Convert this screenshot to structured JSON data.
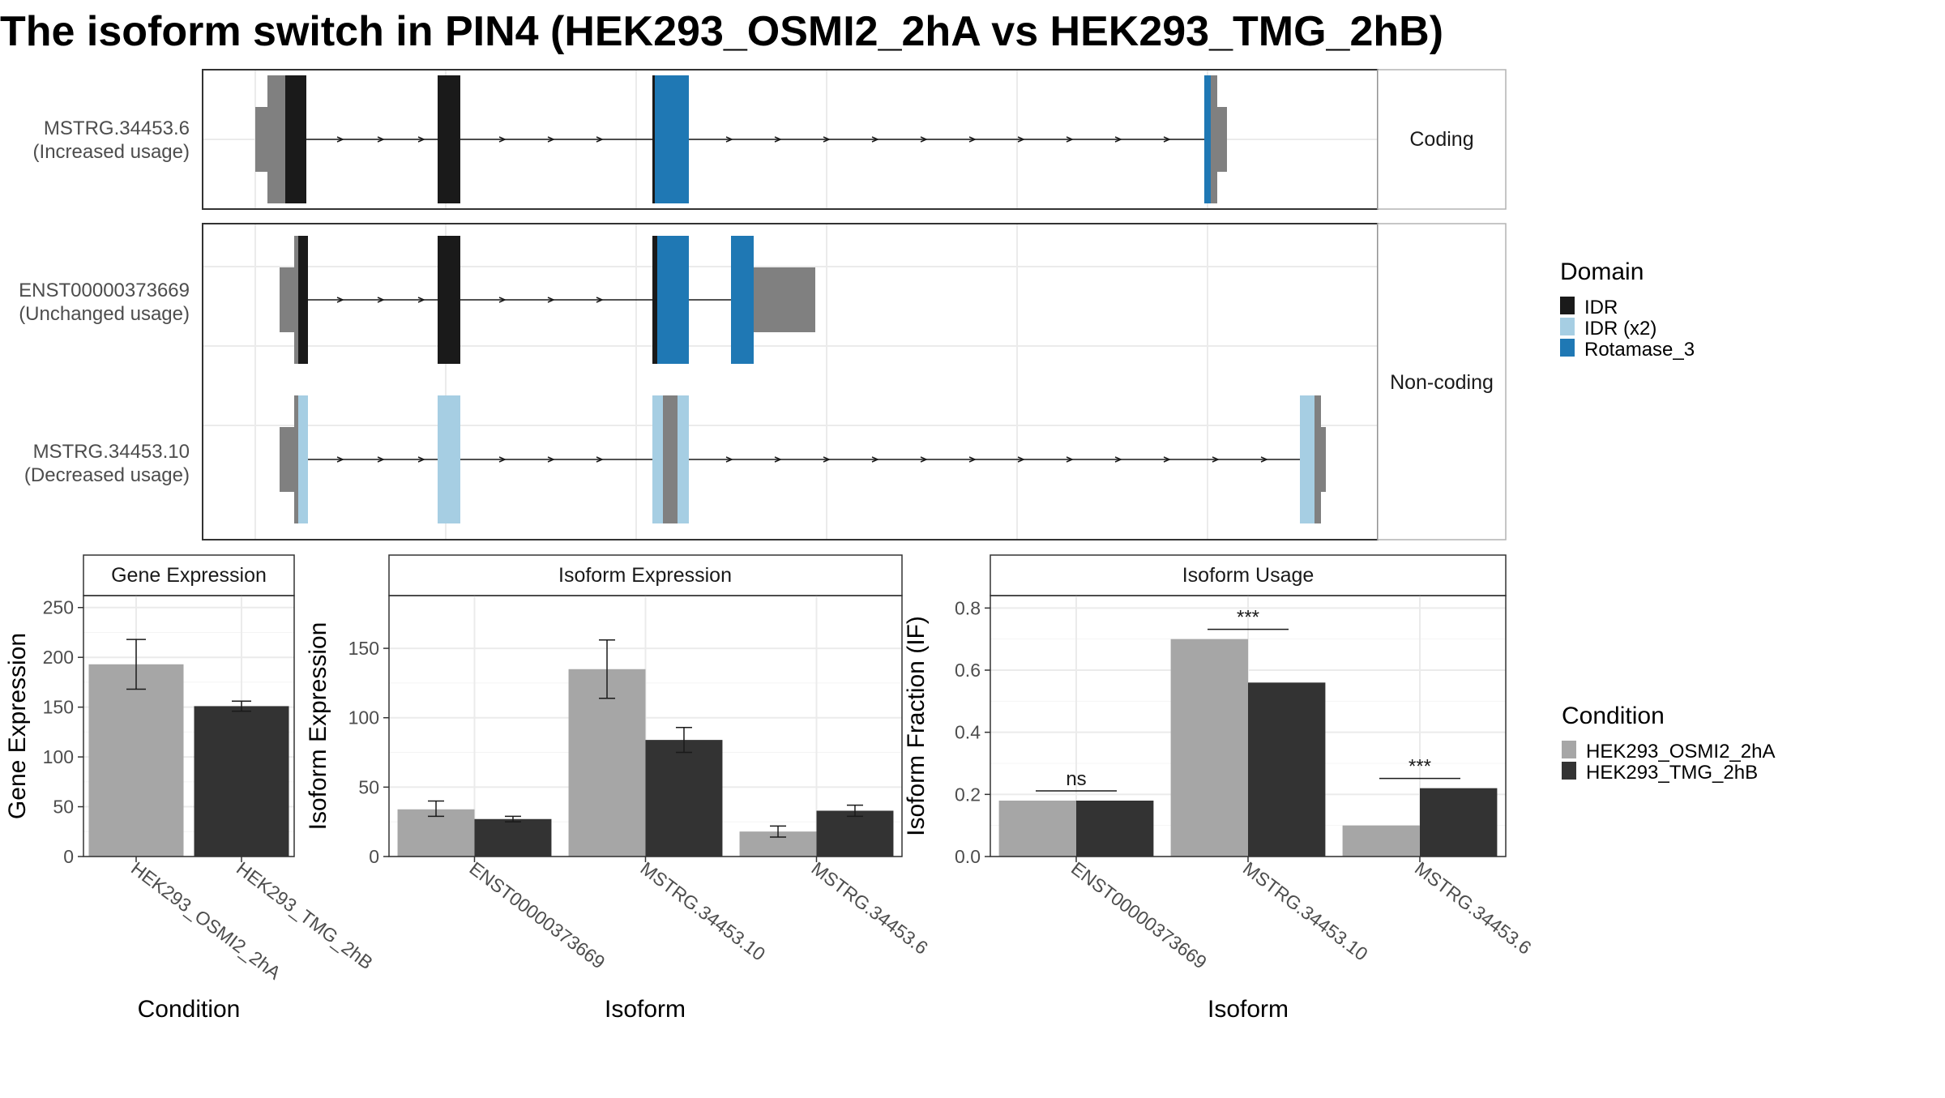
{
  "title": "The isoform switch in PIN4 (HEK293_OSMI2_2hA vs HEK293_TMG_2hB)",
  "colors": {
    "IDR": "#1a1a1a",
    "IDR (x2)": "#a6cee3",
    "Rotamase_3": "#1f78b4",
    "utr": "#808080",
    "cond1": "#a6a6a6",
    "cond2": "#333333"
  },
  "structure": {
    "facets": [
      {
        "label": "Coding",
        "rows": [
          "MSTRG.34453.6"
        ]
      },
      {
        "label": "Non-coding",
        "rows": [
          "ENST00000373669",
          "MSTRG.34453.10"
        ]
      }
    ],
    "transcripts": [
      {
        "id": "MSTRG.34453.6",
        "sub": "(Increased usage)"
      },
      {
        "id": "ENST00000373669",
        "sub": "(Unchanged usage)"
      },
      {
        "id": "MSTRG.34453.10",
        "sub": "(Decreased usage)"
      }
    ],
    "legend": {
      "title": "Domain",
      "items": [
        "IDR",
        "IDR (x2)",
        "Rotamase_3"
      ]
    }
  },
  "chart_data": [
    {
      "type": "bar",
      "title": "Gene Expression",
      "xlabel": "Condition",
      "ylabel": "Gene Expression",
      "categories": [
        "HEK293_OSMI2_2hA",
        "HEK293_TMG_2hB"
      ],
      "values": [
        193,
        151
      ],
      "error": [
        [
          168,
          218
        ],
        [
          146,
          156
        ]
      ],
      "ylim": [
        0,
        262
      ],
      "yticks": [
        0,
        50,
        100,
        150,
        200,
        250
      ]
    },
    {
      "type": "bar",
      "title": "Isoform Expression",
      "xlabel": "Isoform",
      "ylabel": "Isoform Expression",
      "categories": [
        "ENST00000373669",
        "MSTRG.34453.10",
        "MSTRG.34453.6"
      ],
      "series": [
        {
          "name": "HEK293_OSMI2_2hA",
          "values": [
            34,
            135,
            18
          ],
          "error": [
            [
              29,
              40
            ],
            [
              114,
              156
            ],
            [
              14,
              22
            ]
          ]
        },
        {
          "name": "HEK293_TMG_2hB",
          "values": [
            27,
            84,
            33
          ],
          "error": [
            [
              25,
              29
            ],
            [
              75,
              93
            ],
            [
              29,
              37
            ]
          ]
        }
      ],
      "ylim": [
        0,
        188
      ],
      "yticks": [
        0,
        50,
        100,
        150
      ]
    },
    {
      "type": "bar",
      "title": "Isoform Usage",
      "xlabel": "Isoform",
      "ylabel": "Isoform Fraction (IF)",
      "categories": [
        "ENST00000373669",
        "MSTRG.34453.10",
        "MSTRG.34453.6"
      ],
      "series": [
        {
          "name": "HEK293_OSMI2_2hA",
          "values": [
            0.18,
            0.7,
            0.1
          ]
        },
        {
          "name": "HEK293_TMG_2hB",
          "values": [
            0.18,
            0.56,
            0.22
          ]
        }
      ],
      "significance": [
        "ns",
        "***",
        "***"
      ],
      "ylim": [
        0,
        0.84
      ],
      "yticks": [
        0.0,
        0.2,
        0.4,
        0.6,
        0.8
      ],
      "ytick_labels": [
        "0.0",
        "0.2",
        "0.4",
        "0.6",
        "0.8"
      ]
    }
  ],
  "condition_legend": {
    "title": "Condition",
    "items": [
      "HEK293_OSMI2_2hA",
      "HEK293_TMG_2hB"
    ]
  }
}
